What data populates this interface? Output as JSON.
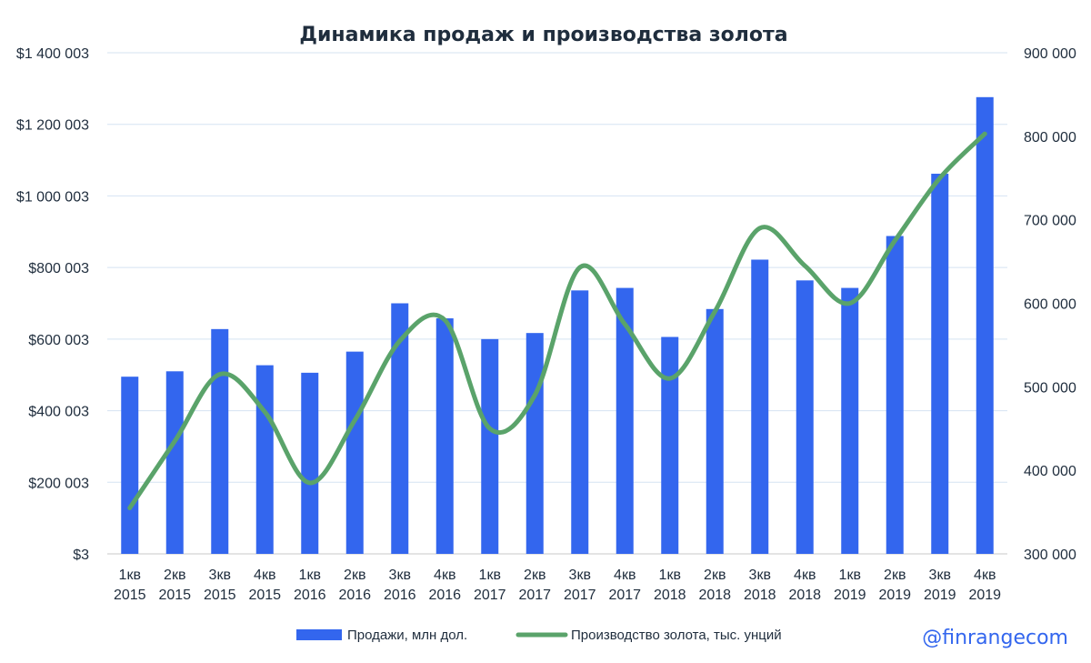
{
  "chart_data": {
    "type": "bar",
    "title": "Динамика продаж и производства золота",
    "categories": [
      [
        "1кв",
        "2015"
      ],
      [
        "2кв",
        "2015"
      ],
      [
        "3кв",
        "2015"
      ],
      [
        "4кв",
        "2015"
      ],
      [
        "1кв",
        "2016"
      ],
      [
        "2кв",
        "2016"
      ],
      [
        "3кв",
        "2016"
      ],
      [
        "4кв",
        "2016"
      ],
      [
        "1кв",
        "2017"
      ],
      [
        "2кв",
        "2017"
      ],
      [
        "3кв",
        "2017"
      ],
      [
        "4кв",
        "2017"
      ],
      [
        "1кв",
        "2018"
      ],
      [
        "2кв",
        "2018"
      ],
      [
        "3кв",
        "2018"
      ],
      [
        "4кв",
        "2018"
      ],
      [
        "1кв",
        "2019"
      ],
      [
        "2кв",
        "2019"
      ],
      [
        "3кв",
        "2019"
      ],
      [
        "4кв",
        "2019"
      ]
    ],
    "series": [
      {
        "name": "Продажи, млн дол.",
        "type": "bar",
        "axis": "left",
        "color": "#3366ee",
        "values": [
          495000,
          510000,
          628000,
          527000,
          506000,
          565000,
          700000,
          658000,
          600000,
          617000,
          736000,
          743000,
          606000,
          684000,
          822000,
          764000,
          743000,
          888000,
          1062000,
          1276000
        ]
      },
      {
        "name": "Производство золота, тыс. унций",
        "type": "line",
        "axis": "right",
        "color": "#5aa36a",
        "values": [
          355000,
          435000,
          515000,
          470000,
          385000,
          460000,
          555000,
          580000,
          450000,
          490000,
          643000,
          575000,
          510000,
          590000,
          690000,
          645000,
          600000,
          675000,
          750000,
          803000
        ]
      }
    ],
    "y_left": {
      "ylim": [
        3,
        1400003
      ],
      "ticks": [
        3,
        200003,
        400003,
        600003,
        800003,
        1000003,
        1200003,
        1400003
      ],
      "tick_labels": [
        "$3",
        "$200 003",
        "$400 003",
        "$600 003",
        "$800 003",
        "$1 000 003",
        "$1 200 003",
        "$1 400 003"
      ]
    },
    "y_right": {
      "ylim": [
        300000,
        900000
      ],
      "ticks": [
        300000,
        400000,
        500000,
        600000,
        700000,
        800000,
        900000
      ],
      "tick_labels": [
        "300 000",
        "400 000",
        "500 000",
        "600 000",
        "700 000",
        "800 000",
        "900 000"
      ]
    },
    "grid": true,
    "legend": "bottom",
    "watermark": "@finrangecom"
  }
}
